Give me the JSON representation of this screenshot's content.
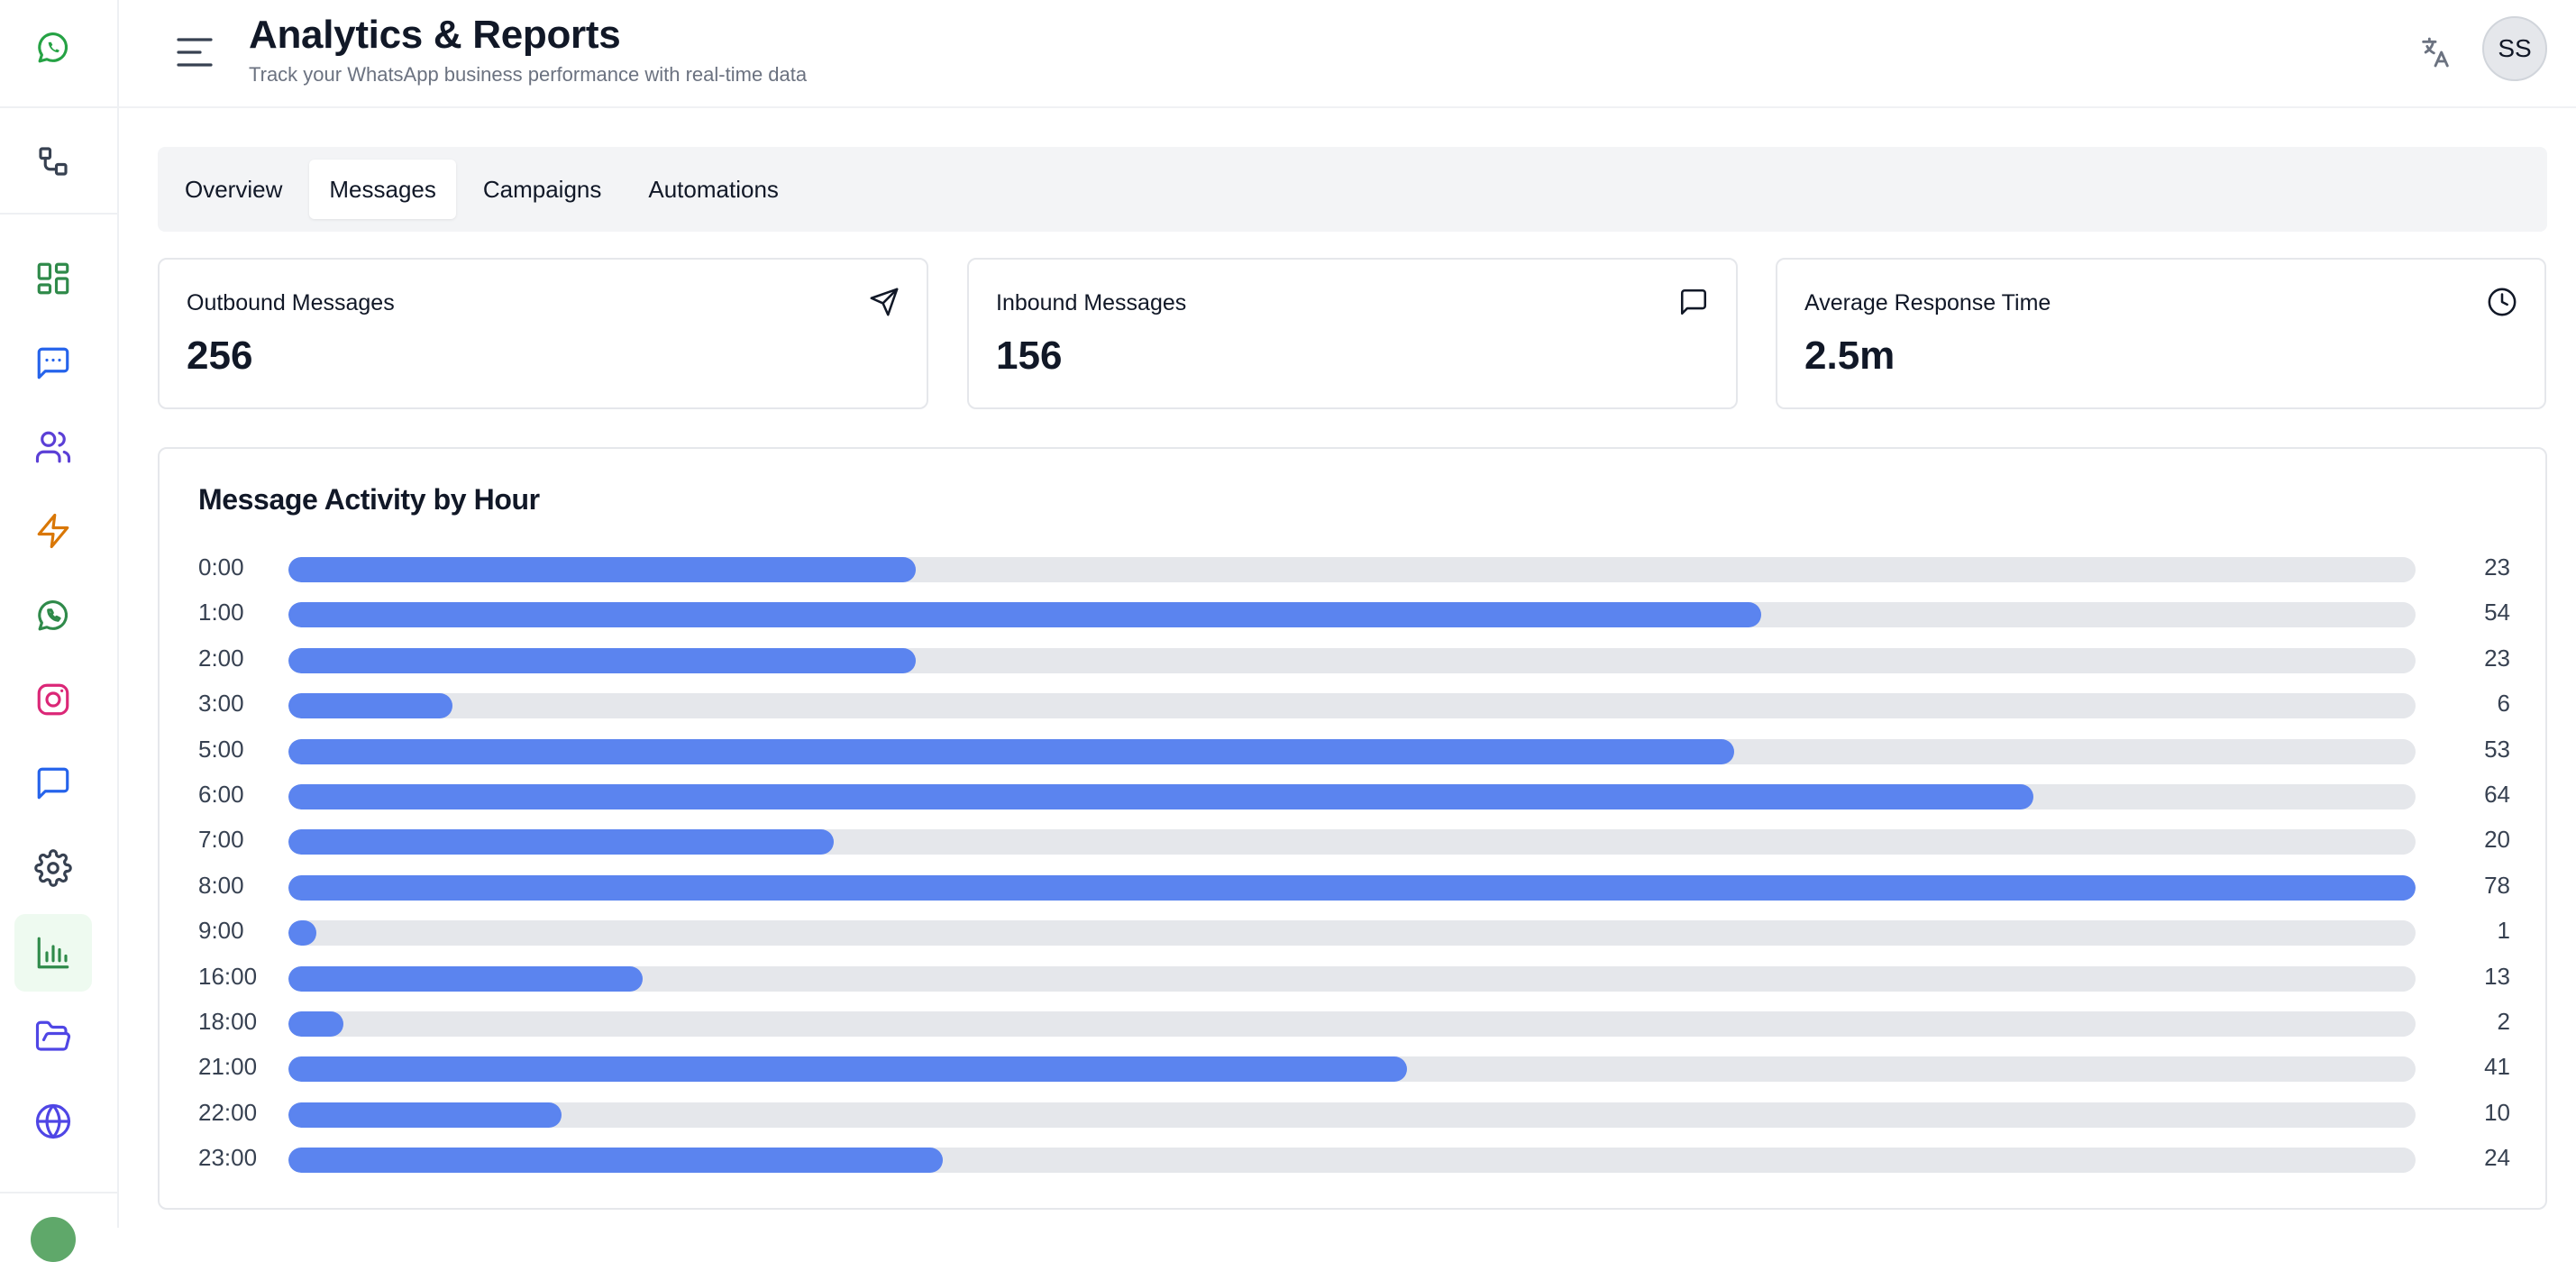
{
  "header": {
    "title": "Analytics & Reports",
    "subtitle": "Track your WhatsApp business performance with real-time data",
    "avatar_initials": "SS"
  },
  "sidebar": {
    "items": [
      {
        "icon": "whatsapp-logo-icon",
        "color": "#25a244"
      },
      {
        "icon": "workflow-icon",
        "color": "#374151"
      },
      {
        "icon": "dashboard-icon",
        "color": "#2f8a4a"
      },
      {
        "icon": "messages-icon",
        "color": "#2563eb"
      },
      {
        "icon": "users-icon",
        "color": "#5b3fd6"
      },
      {
        "icon": "lightning-icon",
        "color": "#d97706"
      },
      {
        "icon": "whatsapp-icon",
        "color": "#2f8a4a"
      },
      {
        "icon": "instagram-icon",
        "color": "#db2777"
      },
      {
        "icon": "chat-icon",
        "color": "#2563eb"
      },
      {
        "icon": "settings-icon",
        "color": "#374151"
      },
      {
        "icon": "analytics-icon",
        "color": "#2f8a4a",
        "active": true
      },
      {
        "icon": "folder-open-icon",
        "color": "#4f46e5"
      },
      {
        "icon": "globe-icon",
        "color": "#4f46e5"
      }
    ]
  },
  "tabs": [
    {
      "label": "Overview",
      "active": false
    },
    {
      "label": "Messages",
      "active": true
    },
    {
      "label": "Campaigns",
      "active": false
    },
    {
      "label": "Automations",
      "active": false
    }
  ],
  "cards": [
    {
      "label": "Outbound Messages",
      "value": "256",
      "icon": "send-icon"
    },
    {
      "label": "Inbound Messages",
      "value": "156",
      "icon": "message-square-icon"
    },
    {
      "label": "Average Response Time",
      "value": "2.5m",
      "icon": "clock-icon"
    }
  ],
  "activity": {
    "title": "Message Activity by Hour"
  },
  "chart_data": {
    "type": "bar",
    "title": "Message Activity by Hour",
    "orientation": "horizontal",
    "categories": [
      "0:00",
      "1:00",
      "2:00",
      "3:00",
      "5:00",
      "6:00",
      "7:00",
      "8:00",
      "9:00",
      "16:00",
      "18:00",
      "21:00",
      "22:00",
      "23:00"
    ],
    "values": [
      23,
      54,
      23,
      6,
      53,
      64,
      20,
      78,
      1,
      13,
      2,
      41,
      10,
      24
    ],
    "xlim": [
      0,
      78
    ],
    "bar_color": "#5b84ef",
    "track_color": "#e5e7eb"
  }
}
